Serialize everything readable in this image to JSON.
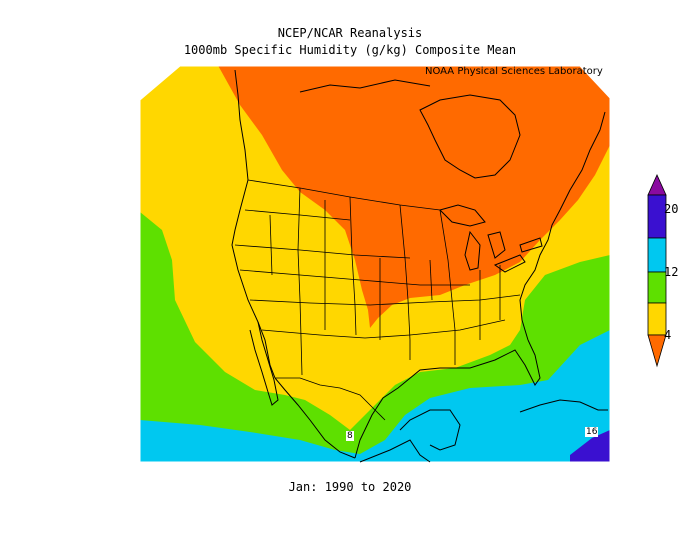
{
  "title_line1": "NCEP/NCAR Reanalysis",
  "title_line2": "1000mb Specific Humidity (g/kg) Composite Mean",
  "credit": "NOAA Physical Sciences Laboratory",
  "footer": "Jan: 1990 to 2020",
  "colorbar": {
    "labels": [
      "20",
      "12",
      "4"
    ],
    "colors": [
      "#ff6a00",
      "#ffd700",
      "#5ee000",
      "#00c8f0",
      "#3a10d0",
      "#8a0aa0"
    ]
  },
  "contour_labels": [
    "8",
    "16"
  ]
}
